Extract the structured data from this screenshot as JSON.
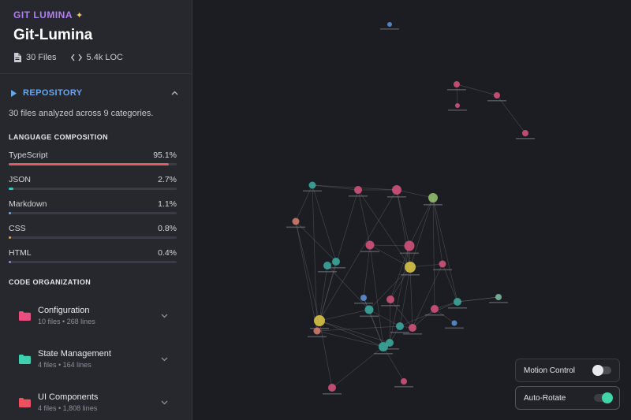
{
  "brand": {
    "label": "GIT LUMINA",
    "icon": "magic-wand-icon"
  },
  "project": {
    "title": "Git-Lumina",
    "files": "30 Files",
    "loc": "5.4k LOC"
  },
  "repository": {
    "section_label": "REPOSITORY",
    "summary": "30 files analyzed across 9 categories.",
    "language_heading": "LANGUAGE COMPOSITION",
    "languages": [
      {
        "name": "TypeScript",
        "percent": "95.1%",
        "fraction": 0.951,
        "color": "#e05a6b"
      },
      {
        "name": "JSON",
        "percent": "2.7%",
        "fraction": 0.027,
        "color": "#38c5c5"
      },
      {
        "name": "Markdown",
        "percent": "1.1%",
        "fraction": 0.011,
        "color": "#5db3e8"
      },
      {
        "name": "CSS",
        "percent": "0.8%",
        "fraction": 0.008,
        "color": "#e0a050"
      },
      {
        "name": "HTML",
        "percent": "0.4%",
        "fraction": 0.004,
        "color": "#9b7cf0"
      }
    ],
    "organization_heading": "CODE ORGANIZATION",
    "categories": [
      {
        "name": "Configuration",
        "meta": "10 files • 268 lines",
        "color": "#ec4d7f"
      },
      {
        "name": "State Management",
        "meta": "4 files • 164 lines",
        "color": "#3fd0b0"
      },
      {
        "name": "UI Components",
        "meta": "4 files • 1,808 lines",
        "color": "#ef5060"
      }
    ]
  },
  "controls": {
    "motion_label": "Motion Control",
    "motion_on": false,
    "rotate_label": "Auto-Rotate",
    "rotate_on": true
  },
  "colors": {
    "accent_blue": "#63a8f0",
    "brand_purple": "#b07ef5",
    "toggle_on": "#3fd6a8"
  }
}
